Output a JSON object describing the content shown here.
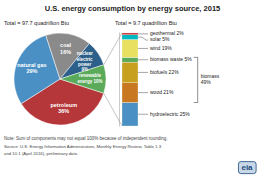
{
  "chart_data": [
    {
      "type": "pie",
      "title": "U.S. energy consumption by energy source, 2015",
      "subtitle": "Total = 97.7 quadrillion Btu",
      "values": [
        36,
        29,
        16,
        9,
        10
      ],
      "value_labels": [
        "petroleum\n36%",
        "natural gas\n29%",
        "coal\n16%",
        "nuclear\nelectric\npower\n9%",
        "renewable\nenergy 10%"
      ],
      "colors": [
        "#b5373a",
        "#4a90c4",
        "#8a8a8a",
        "#2c5f8a",
        "#5aaa5a"
      ],
      "data_labels": true,
      "annotations": [
        "Note: Sum of components may not equal 100% because of independent rounding.",
        "Source: U.S. Energy Information Administration, Monthly Energy Review, Table 1.3",
        "and 10.1 (April 2016), preliminary data",
        "eia"
      ]
    },
    {
      "type": "bar",
      "stacked": true,
      "subtitle": "Total = 9.7 quadrillion Btu",
      "categories": [
        null
      ],
      "series": [
        {
          "name": "hydroelectric 25%",
          "color": "#4a90c4",
          "values": [
            25
          ]
        },
        {
          "name": "wood 21%",
          "color": "#c87820",
          "values": [
            21
          ]
        },
        {
          "name": "biofuels 22%",
          "color": "#c8a020",
          "values": [
            22
          ]
        },
        {
          "name": "biomass waste 5%",
          "color": "#5aaa5a",
          "values": [
            5
          ]
        },
        {
          "name": "wind 19%",
          "color": "#e8e060",
          "values": [
            19
          ]
        },
        {
          "name": "solar 5%",
          "color": "#00b8c0",
          "values": [
            5
          ]
        },
        {
          "name": "geothermal 2%",
          "color": "#c03030",
          "values": [
            2
          ]
        }
      ],
      "ylim": [
        0,
        100
      ],
      "tick_labels": false,
      "annotations": [
        "biomass\n49%"
      ]
    }
  ]
}
